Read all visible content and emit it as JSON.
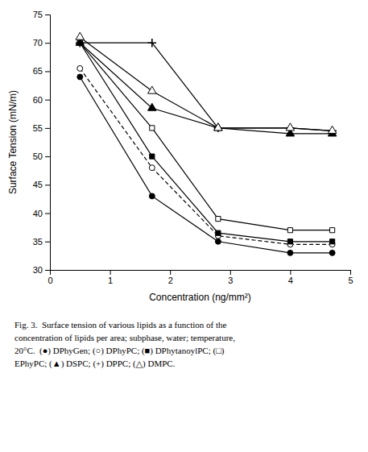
{
  "chart_data": {
    "type": "line",
    "xlabel": "Concentration (ng/mm²)",
    "ylabel": "Surface Tension (mN/m)",
    "annotations": [
      "Fig. 3.  Surface tension of various lipids as a function of the",
      "concentration of lipids per area; subphase, water; temperature,",
      "20°C.  (●) DPhyGen; (○) DPhyPC; (■) DPhytanoylPC; (□)",
      "EPhyPC; (▲) DSPC; (+) DPPC; (△) DMPC."
    ],
    "color": "black",
    "xlim": [
      0,
      5
    ],
    "ylim": [
      30,
      75
    ],
    "xticks": [
      0,
      1,
      2,
      3,
      4,
      5
    ],
    "yticks": [
      30,
      35,
      40,
      45,
      50,
      55,
      60,
      65,
      70,
      75
    ],
    "x": [
      0.5,
      1.7,
      2.8,
      4.0,
      4.7
    ],
    "series": [
      {
        "values": [
          64.0,
          43.0,
          35.0,
          33.0,
          33.0
        ],
        "marker": "circle",
        "line_style": "solid"
      },
      {
        "values": [
          65.5,
          48.0,
          36.0,
          34.5,
          34.5
        ],
        "marker": "circle-open",
        "line_style": "dashed"
      },
      {
        "values": [
          70.0,
          50.0,
          36.5,
          35.0,
          35.0
        ],
        "marker": "square",
        "line_style": "solid"
      },
      {
        "values": [
          70.0,
          55.0,
          39.0,
          37.0,
          37.0
        ],
        "marker": "square-open",
        "line_style": "solid"
      },
      {
        "values": [
          70.0,
          58.5,
          55.0,
          54.0,
          54.0
        ],
        "marker": "triangle",
        "line_style": "solid"
      },
      {
        "values": [
          70.0,
          70.0,
          55.0,
          55.0,
          54.5
        ],
        "marker": "plus",
        "line_style": "solid"
      },
      {
        "values": [
          71.0,
          61.5,
          55.0,
          55.0,
          54.5
        ],
        "marker": "triangle-open",
        "line_style": "solid"
      }
    ]
  }
}
